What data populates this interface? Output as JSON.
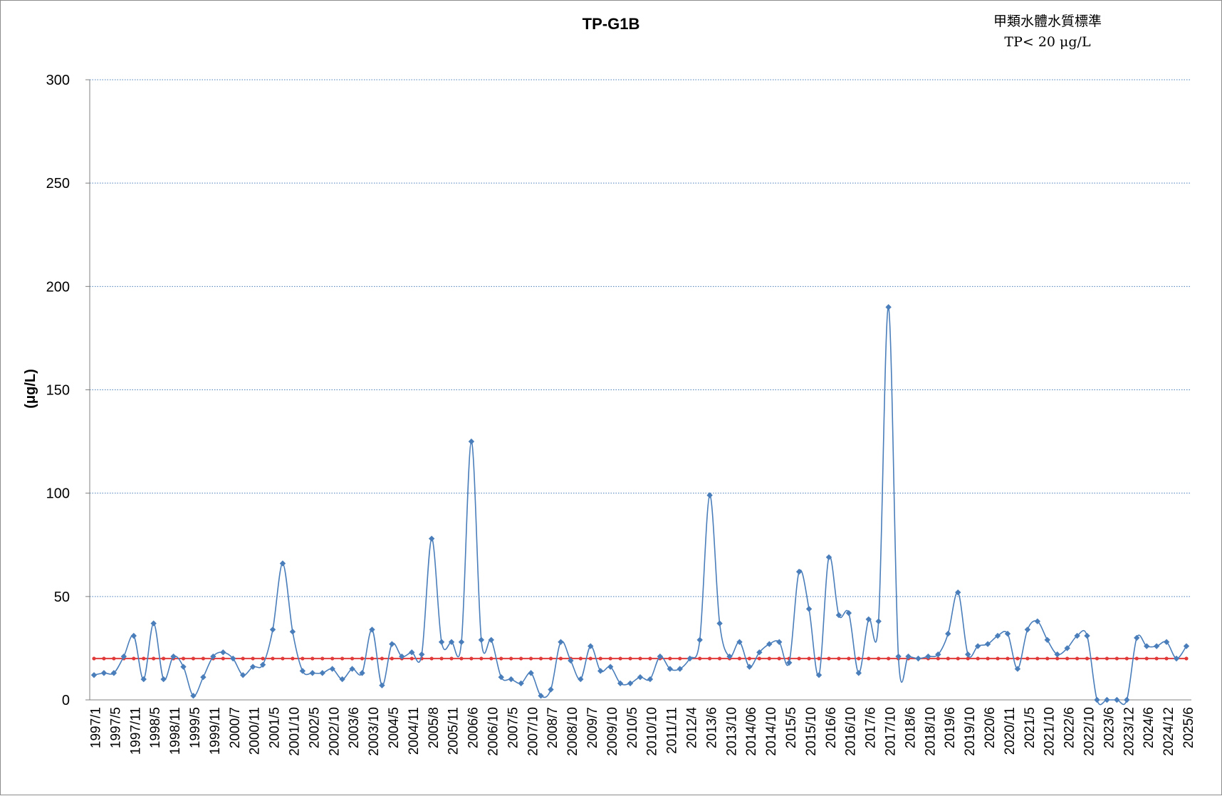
{
  "colors": {
    "series": "#4a7ebb",
    "marker": "#4a7ebb",
    "standard": "#e03a3a",
    "grid": "#4a7ebb",
    "axis": "#808080"
  },
  "chart_data": {
    "type": "line",
    "title": "TP-G1B",
    "note": [
      "甲類水體水質標準",
      "TP< 20 μg/L"
    ],
    "ylabel": "(μg/L)",
    "xlabel": "",
    "ylim": [
      0,
      300
    ],
    "yticks": [
      0,
      50,
      100,
      150,
      200,
      250,
      300
    ],
    "grid": true,
    "legend": "none",
    "x_tick_labels": [
      "1997/1",
      "1997/5",
      "1997/11",
      "1998/5",
      "1998/11",
      "1999/5",
      "1999/11",
      "2000/7",
      "2000/11",
      "2001/5",
      "2001/10",
      "2002/5",
      "2002/10",
      "2003/6",
      "2003/10",
      "2004/5",
      "2004/11",
      "2005/8",
      "2005/11",
      "2006/6",
      "2006/10",
      "2007/5",
      "2007/10",
      "2008/7",
      "2008/10",
      "2009/7",
      "2009/10",
      "2010/5",
      "2010/10",
      "2011/11",
      "2012/4",
      "2013/6",
      "2013/10",
      "2014/06",
      "2014/10",
      "2015/5",
      "2015/10",
      "2016/6",
      "2016/10",
      "2017/6",
      "2017/10",
      "2018/6",
      "2018/10",
      "2019/6",
      "2019/10",
      "2020/6",
      "2020/11",
      "2021/5",
      "2021/10",
      "2022/6",
      "2022/10",
      "2023/6",
      "2023/12",
      "2024/6",
      "2024/12",
      "2025/6"
    ],
    "series": [
      {
        "values": [
          12,
          13,
          13,
          21,
          31,
          10,
          37,
          10,
          21,
          16,
          2,
          11,
          21,
          23,
          20,
          12,
          16,
          17,
          34,
          66,
          33,
          14,
          13,
          13,
          15,
          10,
          15,
          13,
          34,
          7,
          27,
          21,
          23,
          22,
          78,
          28,
          28,
          28,
          125,
          29,
          29,
          11,
          10,
          8,
          13,
          2,
          5,
          28,
          19,
          10,
          26,
          14,
          16,
          8,
          8,
          11,
          10,
          21,
          15,
          15,
          20,
          29,
          99,
          37,
          21,
          28,
          16,
          23,
          27,
          28,
          18,
          62,
          44,
          12,
          69,
          41,
          42,
          13,
          39,
          38,
          190,
          21,
          21,
          20,
          21,
          22,
          32,
          52,
          22,
          26,
          27,
          31,
          32,
          15,
          34,
          38,
          29,
          22,
          25,
          31,
          31,
          0,
          0,
          0,
          0,
          30,
          26,
          26,
          28,
          20,
          26
        ]
      },
      {
        "name": "TP< 20 μg/L",
        "constant": 20
      }
    ]
  }
}
